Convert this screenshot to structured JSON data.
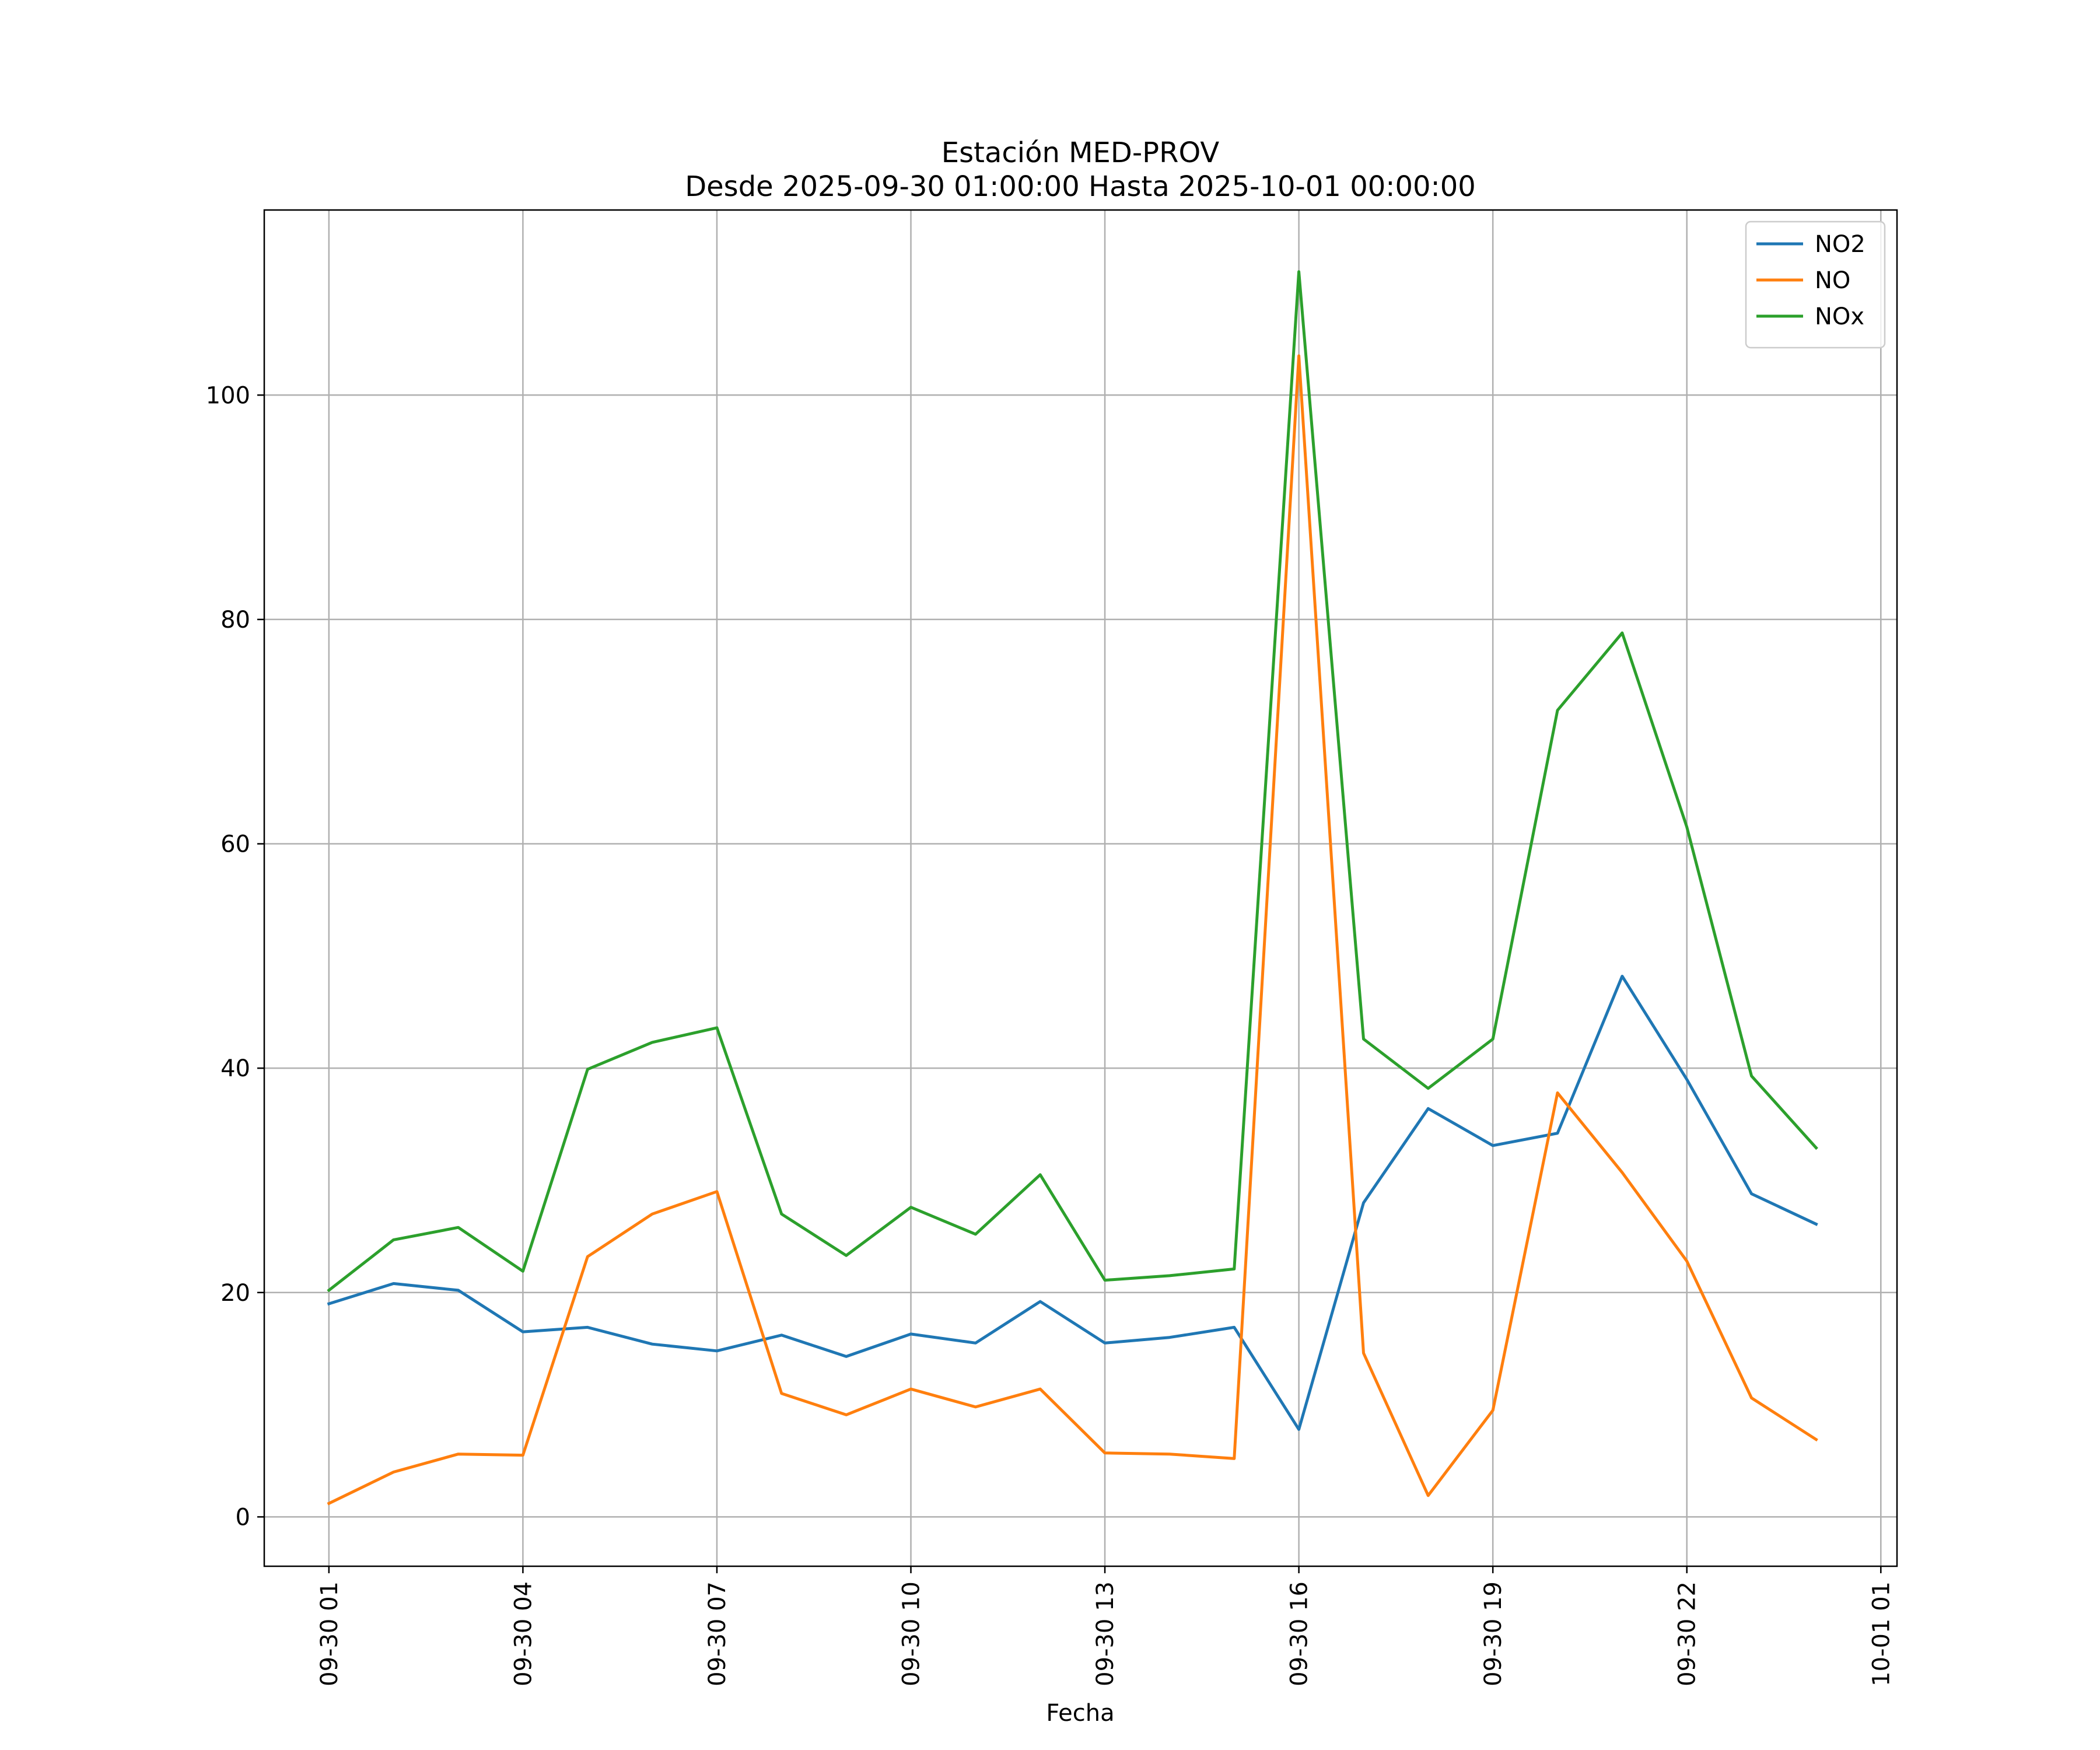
{
  "chart_data": {
    "type": "line",
    "title": "Estación MED-PROV",
    "subtitle": "Desde 2025-09-30 01:00:00 Hasta 2025-10-01 00:00:00",
    "xlabel": "Fecha",
    "ylabel": "",
    "x": [
      "2025-09-30 01:00",
      "2025-09-30 02:00",
      "2025-09-30 03:00",
      "2025-09-30 04:00",
      "2025-09-30 05:00",
      "2025-09-30 06:00",
      "2025-09-30 07:00",
      "2025-09-30 08:00",
      "2025-09-30 09:00",
      "2025-09-30 10:00",
      "2025-09-30 11:00",
      "2025-09-30 12:00",
      "2025-09-30 13:00",
      "2025-09-30 14:00",
      "2025-09-30 15:00",
      "2025-09-30 16:00",
      "2025-09-30 17:00",
      "2025-09-30 18:00",
      "2025-09-30 19:00",
      "2025-09-30 20:00",
      "2025-09-30 21:00",
      "2025-09-30 22:00",
      "2025-09-30 23:00",
      "2025-10-01 00:00"
    ],
    "xlim": [
      "2025-09-30 00:00",
      "2025-10-01 01:15"
    ],
    "ylim": [
      -4.4,
      116.5
    ],
    "x_ticks": [
      {
        "x": "2025-09-30 01:00",
        "label": "09-30 01"
      },
      {
        "x": "2025-09-30 04:00",
        "label": "09-30 04"
      },
      {
        "x": "2025-09-30 07:00",
        "label": "09-30 07"
      },
      {
        "x": "2025-09-30 10:00",
        "label": "09-30 10"
      },
      {
        "x": "2025-09-30 13:00",
        "label": "09-30 13"
      },
      {
        "x": "2025-09-30 16:00",
        "label": "09-30 16"
      },
      {
        "x": "2025-09-30 19:00",
        "label": "09-30 19"
      },
      {
        "x": "2025-09-30 22:00",
        "label": "09-30 22"
      },
      {
        "x": "2025-10-01 01:00",
        "label": "10-01 01"
      }
    ],
    "y_ticks": [
      {
        "value": 0,
        "label": "0"
      },
      {
        "value": 20,
        "label": "20"
      },
      {
        "value": 40,
        "label": "40"
      },
      {
        "value": 60,
        "label": "60"
      },
      {
        "value": 80,
        "label": "80"
      },
      {
        "value": 100,
        "label": "100"
      }
    ],
    "grid": true,
    "legend": "top-right",
    "series": [
      {
        "name": "NO2",
        "color": "#1f77b4",
        "values": [
          19.0,
          20.8,
          20.2,
          16.5,
          16.9,
          15.4,
          14.8,
          16.2,
          14.3,
          16.3,
          15.5,
          19.2,
          15.5,
          16.0,
          16.9,
          7.8,
          28.0,
          36.4,
          33.1,
          34.2,
          48.2,
          39.0,
          28.8,
          26.1
        ]
      },
      {
        "name": "NO",
        "color": "#ff7f0e",
        "values": [
          1.2,
          4.0,
          5.6,
          5.5,
          23.2,
          27.0,
          29.0,
          11.0,
          9.1,
          11.4,
          9.8,
          11.4,
          5.7,
          5.6,
          5.2,
          103.5,
          14.6,
          1.9,
          9.5,
          37.8,
          30.7,
          22.8,
          10.6,
          6.9
        ]
      },
      {
        "name": "NOx",
        "color": "#2ca02c",
        "values": [
          20.2,
          24.7,
          25.8,
          21.9,
          39.9,
          42.3,
          43.6,
          27.0,
          23.3,
          27.6,
          25.2,
          30.5,
          21.1,
          21.5,
          22.1,
          111.0,
          42.6,
          38.2,
          42.6,
          71.9,
          78.8,
          61.5,
          39.3,
          32.9
        ]
      }
    ]
  }
}
